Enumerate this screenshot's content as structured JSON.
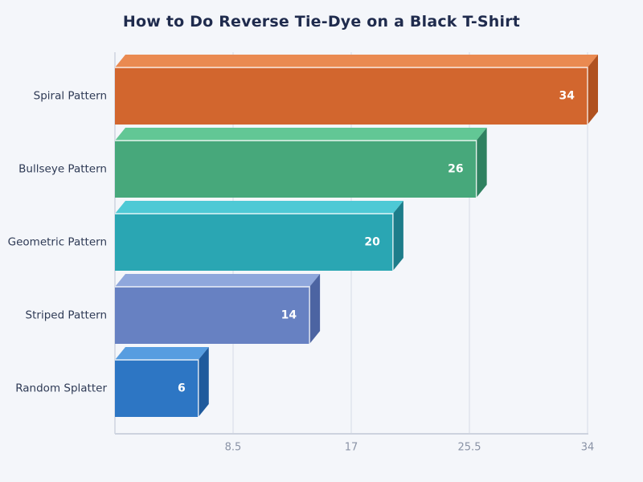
{
  "page": {
    "background": "#f4f6fa"
  },
  "chart_data": {
    "type": "bar",
    "orientation": "horizontal",
    "style": "3d-extruded-bars",
    "title": "How to Do Reverse Tie-Dye on a Black T-Shirt",
    "categories": [
      "Spiral Pattern",
      "Bullseye Pattern",
      "Geometric Pattern",
      "Striped Pattern",
      "Random Splatter"
    ],
    "values": [
      34,
      26,
      20,
      14,
      6
    ],
    "value_labels": [
      "34",
      "26",
      "20",
      "14",
      "6"
    ],
    "xlim": [
      0,
      34
    ],
    "xticks": [
      "8.5",
      "17",
      "25.5",
      "34"
    ],
    "xtick_values": [
      8.5,
      17,
      25.5,
      34
    ],
    "grid": true,
    "legend": "none",
    "bar_colors": [
      {
        "name": "orange",
        "front": "#d2662e",
        "top": "#ea8a51",
        "side": "#b0511f"
      },
      {
        "name": "green",
        "front": "#47a87b",
        "top": "#62c795",
        "side": "#2f8160"
      },
      {
        "name": "teal",
        "front": "#2aa6b3",
        "top": "#4ec9d5",
        "side": "#1d7d8a"
      },
      {
        "name": "slate-blue",
        "front": "#6781c2",
        "top": "#8fa7dc",
        "side": "#4c64a2"
      },
      {
        "name": "blue",
        "front": "#2d76c4",
        "top": "#579de0",
        "side": "#1f5a9c"
      }
    ],
    "colors": {
      "title": "#1f2b4d",
      "category_label": "#2e3a55",
      "tick_label": "#8a93a6",
      "grid_line": "#dde2ec",
      "axis_line": "#cdd3df",
      "value_label": "#ffffff",
      "bar_edge_highlight": "#ffffff"
    }
  }
}
